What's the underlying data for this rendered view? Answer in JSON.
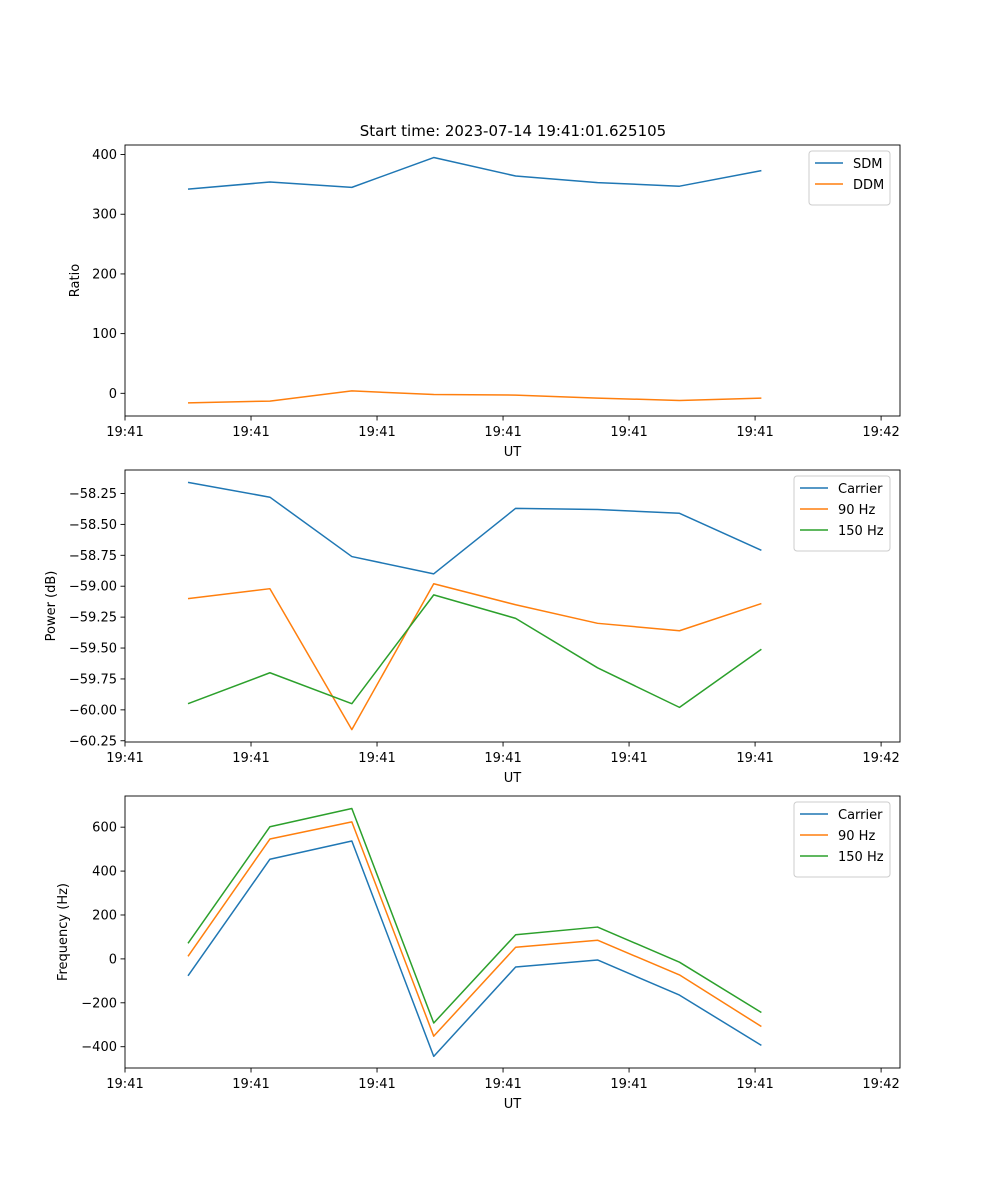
{
  "figure_title": "Start time: 2023-07-14 19:41:01.625105",
  "colors": {
    "c0": "#1f77b4",
    "c1": "#ff7f0e",
    "c2": "#2ca02c"
  },
  "chart_data": [
    {
      "type": "line",
      "title": "Start time: 2023-07-14 19:41:01.625105",
      "xlabel": "UT",
      "ylabel": "Ratio",
      "xlim": [
        0,
        12.3
      ],
      "x": [
        1,
        2.3,
        3.6,
        4.9,
        6.2,
        7.5,
        8.8,
        10.1
      ],
      "xticks": [
        0,
        2,
        4,
        6,
        8,
        10,
        12
      ],
      "xtick_labels": [
        "19:41",
        "19:41",
        "19:41",
        "19:41",
        "19:41",
        "19:41",
        "19:42"
      ],
      "ylim": [
        -38,
        416
      ],
      "yticks": [
        0,
        100,
        200,
        300,
        400
      ],
      "ytick_labels": [
        "0",
        "100",
        "200",
        "300",
        "400"
      ],
      "legend_loc": "top-right",
      "series": [
        {
          "name": "SDM",
          "color": "#1f77b4",
          "values": [
            342,
            354,
            345,
            395,
            364,
            353,
            347,
            373
          ]
        },
        {
          "name": "DDM",
          "color": "#ff7f0e",
          "values": [
            -16,
            -13,
            4,
            -2,
            -3,
            -8,
            -12,
            -8
          ]
        }
      ]
    },
    {
      "type": "line",
      "title": "",
      "xlabel": "UT",
      "ylabel": "Power (dB)",
      "xlim": [
        0,
        12.3
      ],
      "x": [
        1,
        2.3,
        3.6,
        4.9,
        6.2,
        7.5,
        8.8,
        10.1
      ],
      "xticks": [
        0,
        2,
        4,
        6,
        8,
        10,
        12
      ],
      "xtick_labels": [
        "19:41",
        "19:41",
        "19:41",
        "19:41",
        "19:41",
        "19:41",
        "19:42"
      ],
      "ylim": [
        -60.26,
        -58.06
      ],
      "yticks": [
        -60.25,
        -60.0,
        -59.75,
        -59.5,
        -59.25,
        -59.0,
        -58.75,
        -58.5,
        -58.25
      ],
      "ytick_labels": [
        "−60.25",
        "−60.00",
        "−59.75",
        "−59.50",
        "−59.25",
        "−59.00",
        "−58.75",
        "−58.50",
        "−58.25"
      ],
      "legend_loc": "top-right",
      "series": [
        {
          "name": "Carrier",
          "color": "#1f77b4",
          "values": [
            -58.16,
            -58.28,
            -58.76,
            -58.9,
            -58.37,
            -58.38,
            -58.41,
            -58.71
          ]
        },
        {
          "name": "90 Hz",
          "color": "#ff7f0e",
          "values": [
            -59.1,
            -59.02,
            -60.16,
            -58.98,
            -59.15,
            -59.3,
            -59.36,
            -59.14
          ]
        },
        {
          "name": "150 Hz",
          "color": "#2ca02c",
          "values": [
            -59.95,
            -59.7,
            -59.95,
            -59.07,
            -59.26,
            -59.66,
            -59.98,
            -59.51
          ]
        }
      ]
    },
    {
      "type": "line",
      "title": "",
      "xlabel": "UT",
      "ylabel": "Frequency (Hz)",
      "xlim": [
        0,
        12.3
      ],
      "x": [
        1,
        2.3,
        3.6,
        4.9,
        6.2,
        7.5,
        8.8,
        10.1
      ],
      "xticks": [
        0,
        2,
        4,
        6,
        8,
        10,
        12
      ],
      "xtick_labels": [
        "19:41",
        "19:41",
        "19:41",
        "19:41",
        "19:41",
        "19:41",
        "19:42"
      ],
      "ylim": [
        -497,
        742
      ],
      "yticks": [
        -400,
        -200,
        0,
        200,
        400,
        600
      ],
      "ytick_labels": [
        "−400",
        "−200",
        "0",
        "200",
        "400",
        "600"
      ],
      "legend_loc": "top-right",
      "series": [
        {
          "name": "Carrier",
          "color": "#1f77b4",
          "values": [
            -77,
            454,
            537,
            -444,
            -37,
            -5,
            -165,
            -394
          ]
        },
        {
          "name": "90 Hz",
          "color": "#ff7f0e",
          "values": [
            12,
            546,
            624,
            -352,
            53,
            85,
            -73,
            -308
          ]
        },
        {
          "name": "150 Hz",
          "color": "#2ca02c",
          "values": [
            71,
            602,
            685,
            -292,
            110,
            145,
            -15,
            -244
          ]
        }
      ]
    }
  ]
}
